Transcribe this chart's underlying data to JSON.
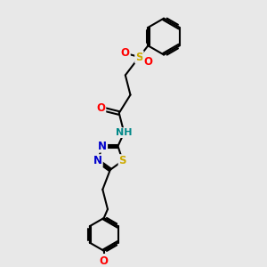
{
  "bg_color": "#e8e8e8",
  "bond_color": "#000000",
  "bond_width": 1.5,
  "atom_colors": {
    "N": "#0000cc",
    "O": "#ff0000",
    "S": "#ccaa00",
    "NH": "#008888"
  },
  "font_size": 8.5
}
